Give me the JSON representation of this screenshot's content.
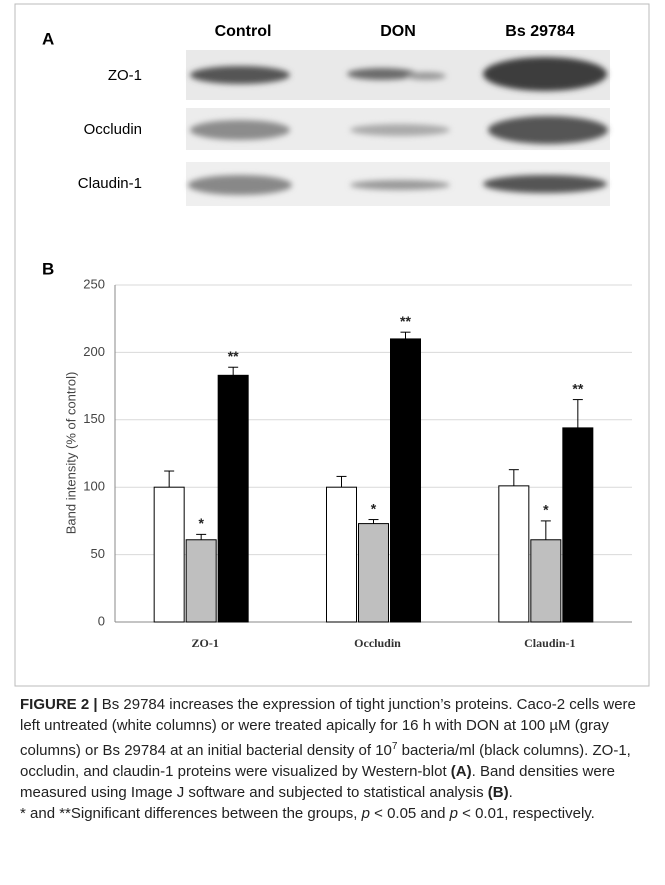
{
  "panel_a": {
    "label": "A",
    "columns": [
      "Control",
      "DON",
      "Bs 29784"
    ],
    "rows": [
      "ZO-1",
      "Occludin",
      "Claudin-1"
    ]
  },
  "chart_data": {
    "type": "bar",
    "panel_label": "B",
    "y_label": "Band intensity (% of control)",
    "categories": [
      "ZO-1",
      "Occludin",
      "Claudin-1"
    ],
    "series": [
      {
        "color": "#ffffff",
        "values": [
          100,
          100,
          101
        ],
        "errors": [
          12,
          8,
          12
        ]
      },
      {
        "color": "#bfbfbf",
        "values": [
          61,
          73,
          61
        ],
        "errors": [
          4,
          3,
          14
        ],
        "sig_labels": [
          "*",
          "*",
          "*"
        ]
      },
      {
        "color": "#000000",
        "values": [
          183,
          210,
          144
        ],
        "errors": [
          6,
          5,
          21
        ],
        "sig_labels": [
          "**",
          "**",
          "**"
        ]
      }
    ],
    "ylim": [
      0,
      250
    ],
    "yticks": [
      0,
      50,
      100,
      150,
      200,
      250
    ],
    "grid": true
  },
  "caption": {
    "paragraphs": [
      [
        {
          "text": "FIGURE 2 |",
          "style": "bold"
        },
        {
          "text": " Bs 29784 increases the expression of tight junction’s proteins. Caco-2 cells were left untreated (white columns) or were treated apically for 16 h with DON at 100 µM (gray columns) or Bs 29784 at an initial bacterial density of 10",
          "style": "normal"
        },
        {
          "text": "7",
          "style": "sup"
        },
        {
          "text": " bacteria/ml (black columns). ZO-1, occludin, and claudin-1 proteins were visualized by Western-blot ",
          "style": "normal"
        },
        {
          "text": "(A)",
          "style": "bold"
        },
        {
          "text": ". Band densities were measured using Image J software and subjected to statistical analysis ",
          "style": "normal"
        },
        {
          "text": "(B)",
          "style": "bold"
        },
        {
          "text": ".",
          "style": "normal"
        }
      ],
      [
        {
          "text": "* and **Significant differences between the groups, ",
          "style": "normal"
        },
        {
          "text": "p",
          "style": "italic"
        },
        {
          "text": " < 0.05 and ",
          "style": "normal"
        },
        {
          "text": "p",
          "style": "italic"
        },
        {
          "text": " < 0.01, respectively.",
          "style": "normal"
        }
      ]
    ]
  }
}
